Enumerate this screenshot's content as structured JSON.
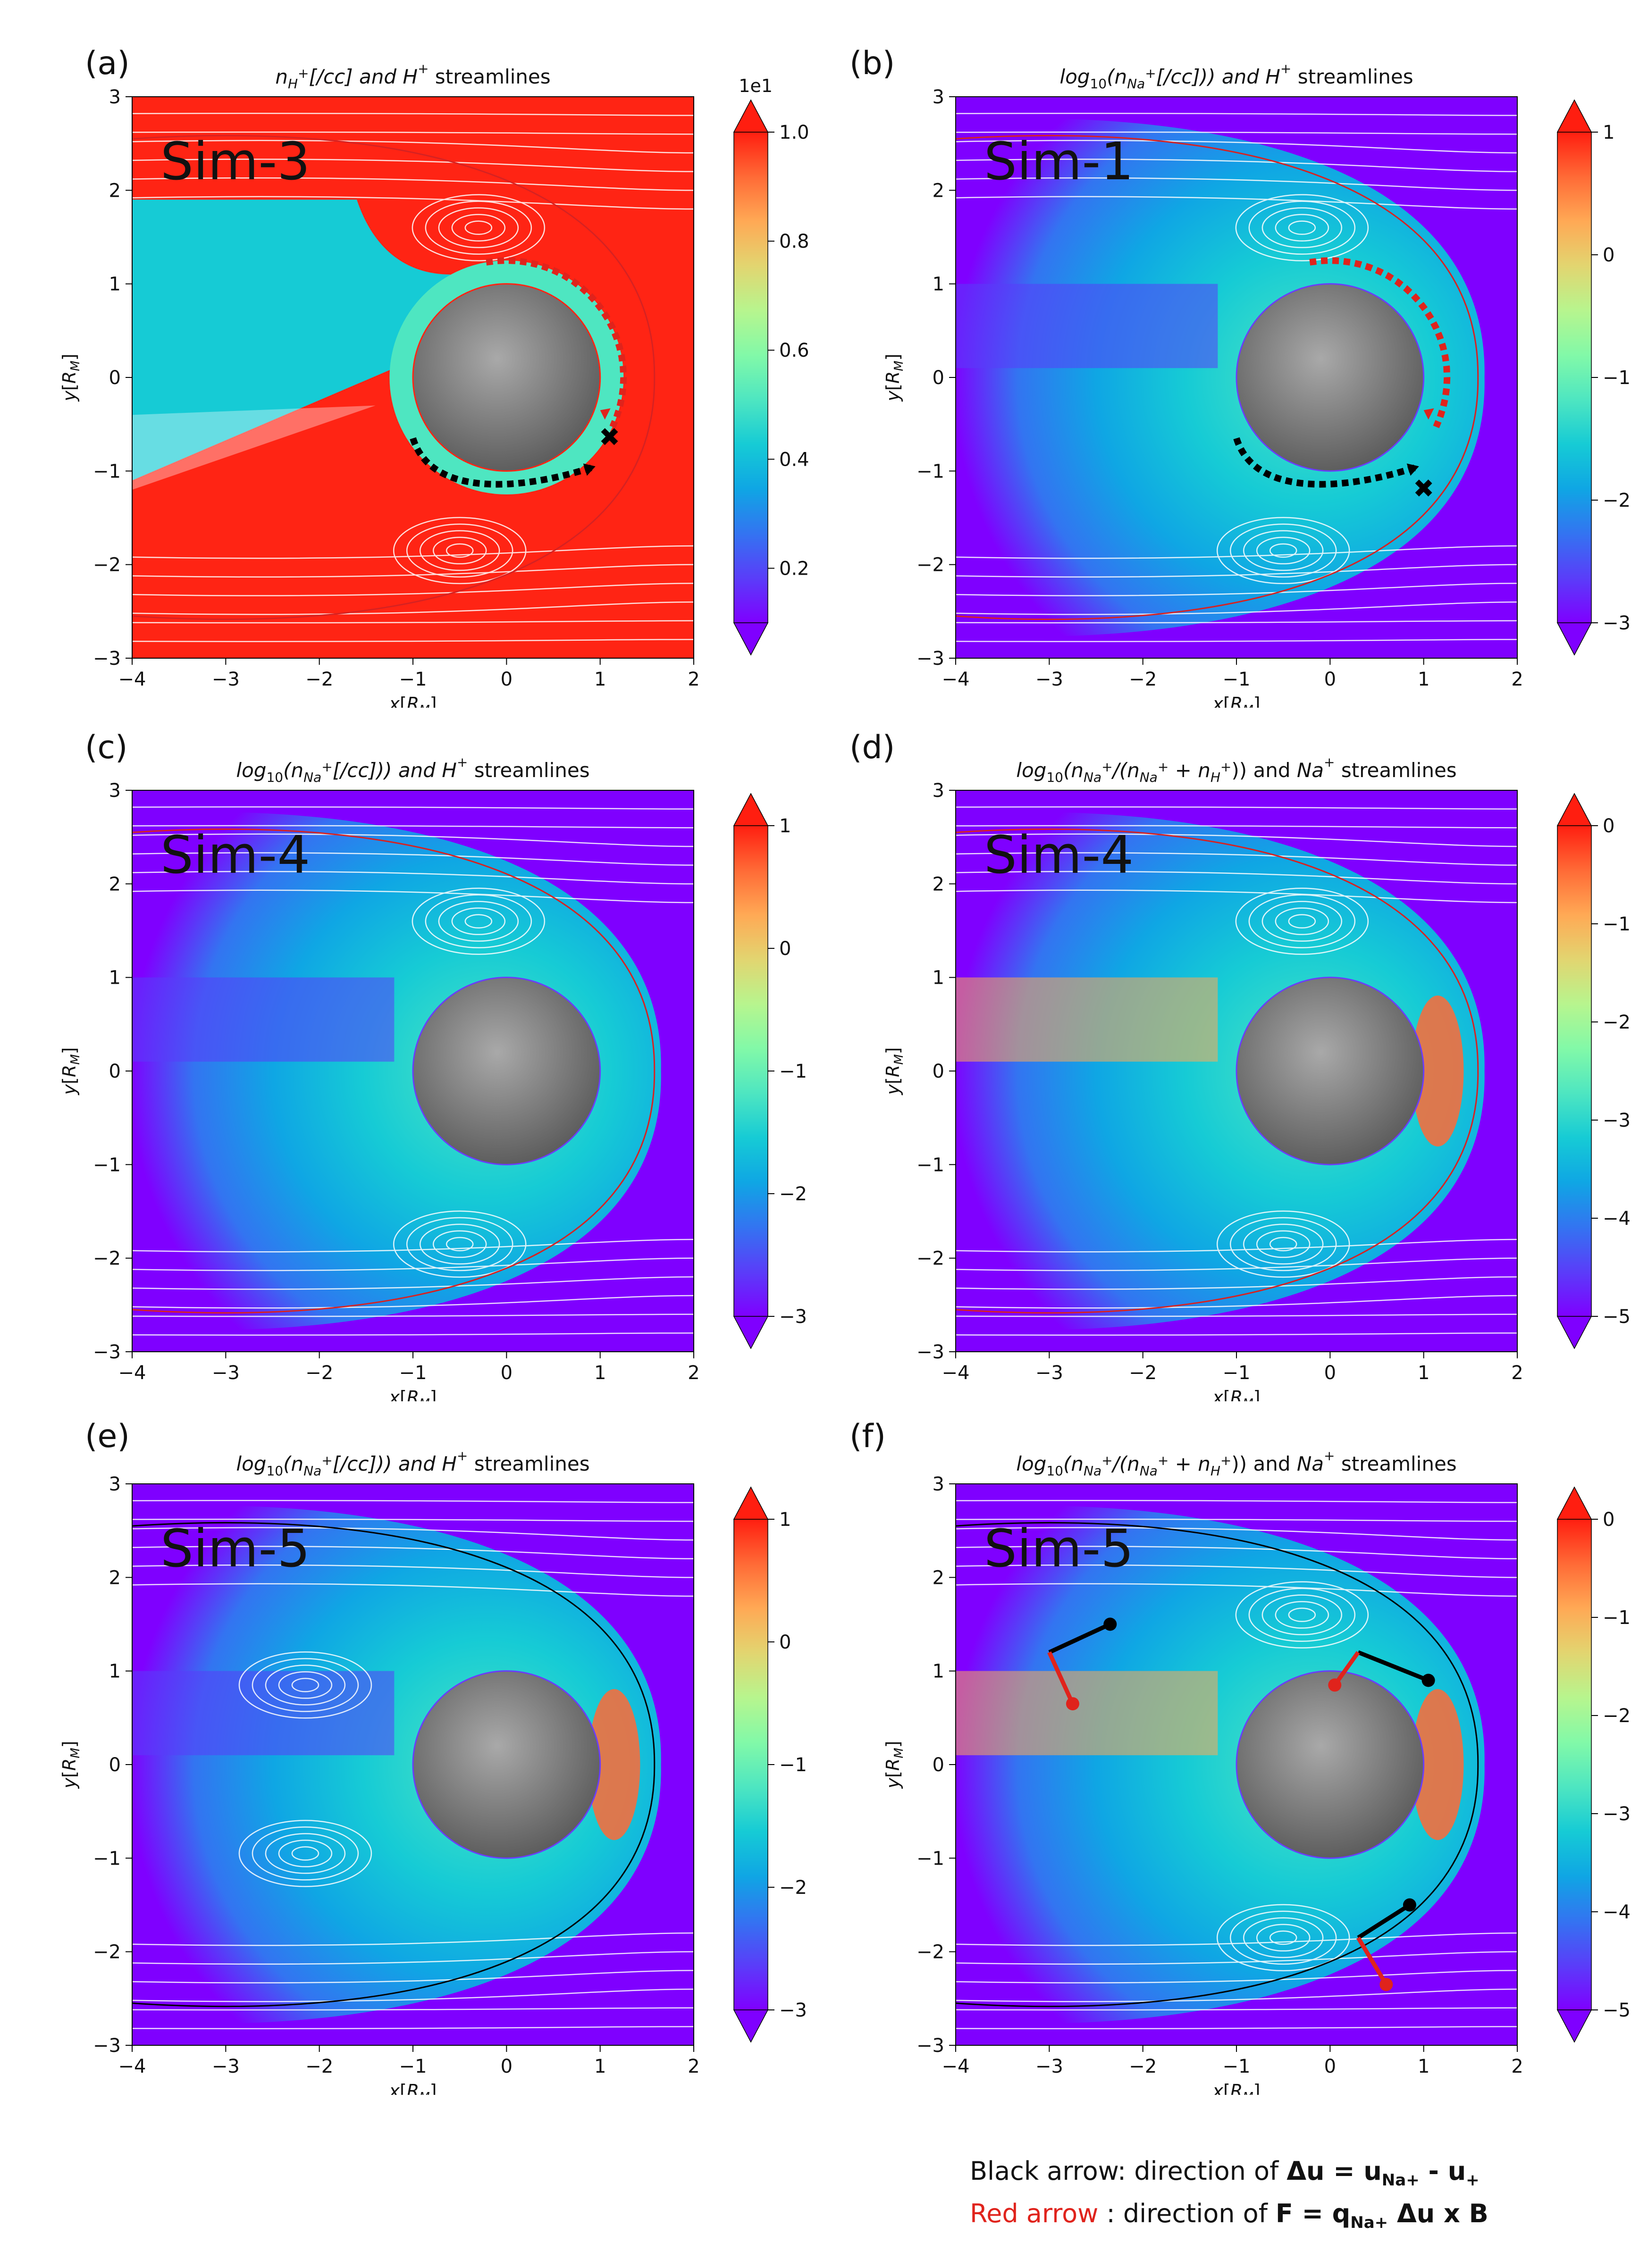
{
  "colors": {
    "rainbow": [
      "#7f00ff",
      "#5a3df9",
      "#3374f1",
      "#0fa6e4",
      "#16cbd5",
      "#4ee6c1",
      "#82f9a8",
      "#b7f58e",
      "#e2d570",
      "#ffa955",
      "#ff6a36",
      "#ff1e10"
    ],
    "sheath_red": "#ff2414",
    "streamline": "#ffffff",
    "black_arrow": "#000000",
    "red_arrow": "#e0231c"
  },
  "legend": {
    "black_lead": "Black arrow: direction of ",
    "black_formula_bold": "Δu = u",
    "black_sub1": "Na+",
    "black_mid": " - ",
    "black_u": "u",
    "black_sub2": "+",
    "red_lead": "Red arrow",
    "red_rest": "  : direction of ",
    "red_formula_bold": "F = q",
    "red_sub": "Na+",
    "red_tail": " Δu x B"
  },
  "chart_data": [
    {
      "type": "heatmap",
      "panel_label": "(a)",
      "sim_label": "Sim-3",
      "title": "n_H+ [/cc] and H+ streamlines",
      "title_parts": {
        "a": "n",
        "a_sub": "H",
        "a_sup": "+",
        "b": "[/cc] and ",
        "c": "H",
        "c_sup": "+",
        "d": " streamlines"
      },
      "xlabel": "x[R_M]",
      "ylabel": "y[R_M]",
      "xlim": [
        -4,
        2
      ],
      "ylim": [
        -3,
        3
      ],
      "xticks": [
        "−4",
        "−3",
        "−2",
        "−1",
        "0",
        "1",
        "2"
      ],
      "yticks": [
        "−3",
        "−2",
        "−1",
        "0",
        "1",
        "2",
        "3"
      ],
      "colorbar": {
        "min": 0.1,
        "max": 1.0,
        "ticks": [
          "0.2",
          "0.4",
          "0.6",
          "0.8",
          "1.0"
        ],
        "multiplier": "1e1"
      },
      "background": "red",
      "boundary_color": "red",
      "arrows": {
        "red_dotted": true,
        "black_dotted": true,
        "x_marker": [
          1.1,
          -0.65
        ]
      }
    },
    {
      "type": "heatmap",
      "panel_label": "(b)",
      "sim_label": "Sim-1",
      "title": "log10(n_Na+ [/cc])) and H+ streamlines",
      "title_parts": {
        "a": "log",
        "a_sub": "10",
        "b": "(n",
        "b_sub": "Na",
        "b_sup": "+",
        "c": "[/cc])) and ",
        "d": "H",
        "d_sup": "+",
        "e": " streamlines"
      },
      "xlabel": "x[R_M]",
      "ylabel": "y[R_M]",
      "xlim": [
        -4,
        2
      ],
      "ylim": [
        -3,
        3
      ],
      "xticks": [
        "−4",
        "−3",
        "−2",
        "−1",
        "0",
        "1",
        "2"
      ],
      "yticks": [
        "−3",
        "−2",
        "−1",
        "0",
        "1",
        "2",
        "3"
      ],
      "colorbar": {
        "min": -3,
        "max": 1,
        "ticks": [
          "−3",
          "−2",
          "−1",
          "0",
          "1"
        ]
      },
      "background": "field",
      "boundary_color": "red",
      "arrows": {
        "red_dotted": true,
        "black_dotted": true,
        "x_marker": [
          1.0,
          -1.2
        ]
      }
    },
    {
      "type": "heatmap",
      "panel_label": "(c)",
      "sim_label": "Sim-4",
      "title": "log10(n_Na+ [/cc])) and H+ streamlines",
      "title_parts": {
        "a": "log",
        "a_sub": "10",
        "b": "(n",
        "b_sub": "Na",
        "b_sup": "+",
        "c": "[/cc])) and ",
        "d": "H",
        "d_sup": "+",
        "e": " streamlines"
      },
      "xlabel": "x[R_M]",
      "ylabel": "y[R_M]",
      "xlim": [
        -4,
        2
      ],
      "ylim": [
        -3,
        3
      ],
      "xticks": [
        "−4",
        "−3",
        "−2",
        "−1",
        "0",
        "1",
        "2"
      ],
      "yticks": [
        "−3",
        "−2",
        "−1",
        "0",
        "1",
        "2",
        "3"
      ],
      "colorbar": {
        "min": -3,
        "max": 1,
        "ticks": [
          "−3",
          "−2",
          "−1",
          "0",
          "1"
        ]
      },
      "background": "field",
      "boundary_color": "red"
    },
    {
      "type": "heatmap",
      "panel_label": "(d)",
      "sim_label": "Sim-4",
      "title": "log10(n_Na+ /(n_Na+ + n_H+)) and Na+ streamlines",
      "title_parts": {
        "a": "log",
        "a_sub": "10",
        "b": "(n",
        "b_sub": "Na",
        "b_sup": "+",
        "c": "/(n",
        "c_sub": "Na",
        "c_sup": "+",
        "d": " + n",
        "d_sub": "H",
        "d_sup": "+",
        "e": ")) and ",
        "f": "Na",
        "f_sup": "+",
        "g": " streamlines"
      },
      "xlabel": "x[R_M]",
      "ylabel": "y[R_M]",
      "xlim": [
        -4,
        2
      ],
      "ylim": [
        -3,
        3
      ],
      "xticks": [
        "−4",
        "−3",
        "−2",
        "−1",
        "0",
        "1",
        "2"
      ],
      "yticks": [
        "−3",
        "−2",
        "−1",
        "0",
        "1",
        "2",
        "3"
      ],
      "colorbar": {
        "min": -5,
        "max": 0,
        "ticks": [
          "−5",
          "−4",
          "−3",
          "−2",
          "−1",
          "0"
        ]
      },
      "background": "field",
      "boundary_color": "red"
    },
    {
      "type": "heatmap",
      "panel_label": "(e)",
      "sim_label": "Sim-5",
      "title": "log10(n_Na+ [/cc])) and H+ streamlines",
      "title_parts": {
        "a": "log",
        "a_sub": "10",
        "b": "(n",
        "b_sub": "Na",
        "b_sup": "+",
        "c": "[/cc])) and ",
        "d": "H",
        "d_sup": "+",
        "e": " streamlines"
      },
      "xlabel": "x[R_M]",
      "ylabel": "y[R_M]",
      "xlim": [
        -4,
        2
      ],
      "ylim": [
        -3,
        3
      ],
      "xticks": [
        "−4",
        "−3",
        "−2",
        "−1",
        "0",
        "1",
        "2"
      ],
      "yticks": [
        "−3",
        "−2",
        "−1",
        "0",
        "1",
        "2",
        "3"
      ],
      "colorbar": {
        "min": -3,
        "max": 1,
        "ticks": [
          "−3",
          "−2",
          "−1",
          "0",
          "1"
        ]
      },
      "background": "field",
      "boundary_color": "black"
    },
    {
      "type": "heatmap",
      "panel_label": "(f)",
      "sim_label": "Sim-5",
      "title": "log10(n_Na+ /(n_Na+ + n_H+)) and Na+ streamlines",
      "title_parts": {
        "a": "log",
        "a_sub": "10",
        "b": "(n",
        "b_sub": "Na",
        "b_sup": "+",
        "c": "/(n",
        "c_sub": "Na",
        "c_sup": "+",
        "d": " + n",
        "d_sub": "H",
        "d_sup": "+",
        "e": ")) and ",
        "f": "Na",
        "f_sup": "+",
        "g": " streamlines"
      },
      "xlabel": "x[R_M]",
      "ylabel": "y[R_M]",
      "xlim": [
        -4,
        2
      ],
      "ylim": [
        -3,
        3
      ],
      "xticks": [
        "−4",
        "−3",
        "−2",
        "−1",
        "0",
        "1",
        "2"
      ],
      "yticks": [
        "−3",
        "−2",
        "−1",
        "0",
        "1",
        "2",
        "3"
      ],
      "colorbar": {
        "min": -5,
        "max": 0,
        "ticks": [
          "−5",
          "−4",
          "−3",
          "−2",
          "−1",
          "0"
        ]
      },
      "background": "field",
      "boundary_color": "black",
      "force_arrows": [
        {
          "at": [
            -3.0,
            1.2
          ],
          "black": [
            0.65,
            0.3
          ],
          "red": [
            0.25,
            -0.55
          ]
        },
        {
          "at": [
            0.3,
            1.2
          ],
          "black": [
            0.75,
            -0.3
          ],
          "red": [
            -0.25,
            -0.35
          ]
        },
        {
          "at": [
            0.3,
            -1.85
          ],
          "black": [
            0.55,
            0.35
          ],
          "red": [
            0.3,
            -0.5
          ]
        }
      ]
    }
  ]
}
